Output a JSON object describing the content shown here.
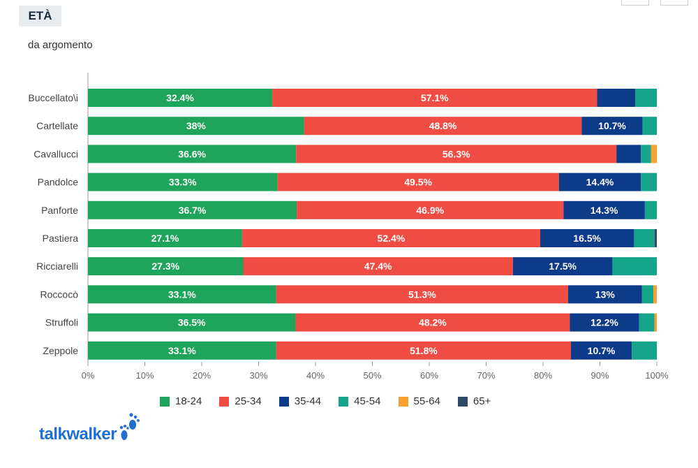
{
  "header": {
    "title": "ETÀ",
    "subtitle": "da argomento"
  },
  "legend": [
    {
      "label": "18-24",
      "color": "#1fa55b"
    },
    {
      "label": "25-34",
      "color": "#ef4c43"
    },
    {
      "label": "35-44",
      "color": "#0e3a8a"
    },
    {
      "label": "45-54",
      "color": "#16a58a"
    },
    {
      "label": "55-64",
      "color": "#f6a030"
    },
    {
      "label": "65+",
      "color": "#2f4a66"
    }
  ],
  "logo": {
    "text": "talkwalker"
  },
  "chart_data": {
    "type": "bar",
    "orientation": "horizontal",
    "stacked": true,
    "normalized": "percent",
    "categories": [
      "Buccellato\\i",
      "Cartellate",
      "Cavallucci",
      "Pandolce",
      "Panforte",
      "Pastiera",
      "Ricciarelli",
      "Roccocò",
      "Struffoli",
      "Zeppole"
    ],
    "series": [
      {
        "name": "18-24",
        "color": "#1fa55b",
        "values": [
          32.4,
          38,
          36.6,
          33.3,
          36.7,
          27.1,
          27.3,
          33.1,
          36.5,
          33.1
        ]
      },
      {
        "name": "25-34",
        "color": "#ef4c43",
        "values": [
          57.1,
          48.8,
          56.3,
          49.5,
          46.9,
          52.4,
          47.4,
          51.3,
          48.2,
          51.8
        ]
      },
      {
        "name": "35-44",
        "color": "#0e3a8a",
        "values": [
          6.7,
          10.7,
          4.3,
          14.4,
          14.3,
          16.5,
          17.5,
          13,
          12.2,
          10.7
        ]
      },
      {
        "name": "45-54",
        "color": "#16a58a",
        "values": [
          3.8,
          2.5,
          1.8,
          2.8,
          2.1,
          3.6,
          7.8,
          2.0,
          2.7,
          4.4
        ]
      },
      {
        "name": "55-64",
        "color": "#f6a030",
        "values": [
          0,
          0,
          1.0,
          0,
          0,
          0,
          0,
          0.6,
          0.4,
          0
        ]
      },
      {
        "name": "65+",
        "color": "#2f4a66",
        "values": [
          0,
          0,
          0,
          0,
          0,
          0.4,
          0,
          0,
          0,
          0
        ]
      }
    ],
    "data_labels": [
      [
        "32.4%",
        "57.1%",
        "",
        "",
        "",
        ""
      ],
      [
        "38%",
        "48.8%",
        "10.7%",
        "",
        "",
        ""
      ],
      [
        "36.6%",
        "56.3%",
        "",
        "",
        "",
        ""
      ],
      [
        "33.3%",
        "49.5%",
        "14.4%",
        "",
        "",
        ""
      ],
      [
        "36.7%",
        "46.9%",
        "14.3%",
        "",
        "",
        ""
      ],
      [
        "27.1%",
        "52.4%",
        "16.5%",
        "",
        "",
        ""
      ],
      [
        "27.3%",
        "47.4%",
        "17.5%",
        "",
        "",
        ""
      ],
      [
        "33.1%",
        "51.3%",
        "13%",
        "",
        "",
        ""
      ],
      [
        "36.5%",
        "48.2%",
        "12.2%",
        "",
        "",
        ""
      ],
      [
        "33.1%",
        "51.8%",
        "10.7%",
        "",
        "",
        ""
      ]
    ],
    "x_ticks": [
      "0%",
      "10%",
      "20%",
      "30%",
      "40%",
      "50%",
      "60%",
      "70%",
      "80%",
      "90%",
      "100%"
    ],
    "xlim": [
      0,
      100
    ],
    "grid": false,
    "legend_position": "bottom"
  }
}
